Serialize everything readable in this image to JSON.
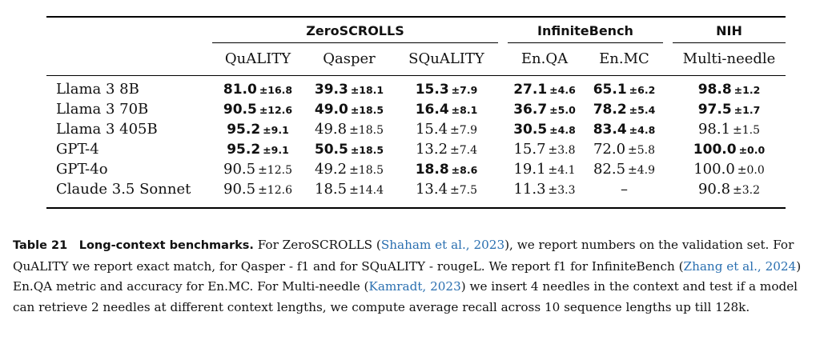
{
  "table": {
    "groups": [
      "ZeroSCROLLS",
      "InfiniteBench",
      "NIH"
    ],
    "columns": [
      "QuALITY",
      "Qasper",
      "SQuALITY",
      "En.QA",
      "En.MC",
      "Multi-needle"
    ],
    "rows": [
      {
        "model": "Llama 3 8B",
        "cells": [
          {
            "v": "81.0",
            "sd": "±16.8",
            "bold": true
          },
          {
            "v": "39.3",
            "sd": "±18.1",
            "bold": true
          },
          {
            "v": "15.3",
            "sd": "±7.9",
            "bold": true
          },
          {
            "v": "27.1",
            "sd": "±4.6",
            "bold": true
          },
          {
            "v": "65.1",
            "sd": "±6.2",
            "bold": true
          },
          {
            "v": "98.8",
            "sd": "±1.2",
            "bold": true
          }
        ]
      },
      {
        "model": "Llama 3 70B",
        "cells": [
          {
            "v": "90.5",
            "sd": "±12.6",
            "bold": true
          },
          {
            "v": "49.0",
            "sd": "±18.5",
            "bold": true
          },
          {
            "v": "16.4",
            "sd": "±8.1",
            "bold": true
          },
          {
            "v": "36.7",
            "sd": "±5.0",
            "bold": true
          },
          {
            "v": "78.2",
            "sd": "±5.4",
            "bold": true
          },
          {
            "v": "97.5",
            "sd": "±1.7",
            "bold": true
          }
        ]
      },
      {
        "model": "Llama 3 405B",
        "cells": [
          {
            "v": "95.2",
            "sd": "±9.1",
            "bold": true
          },
          {
            "v": "49.8",
            "sd": "±18.5",
            "bold": false
          },
          {
            "v": "15.4",
            "sd": "±7.9",
            "bold": false
          },
          {
            "v": "30.5",
            "sd": "±4.8",
            "bold": true
          },
          {
            "v": "83.4",
            "sd": "±4.8",
            "bold": true
          },
          {
            "v": "98.1",
            "sd": "±1.5",
            "bold": false
          }
        ]
      },
      {
        "model": "GPT-4",
        "cells": [
          {
            "v": "95.2",
            "sd": "±9.1",
            "bold": true
          },
          {
            "v": "50.5",
            "sd": "±18.5",
            "bold": true
          },
          {
            "v": "13.2",
            "sd": "±7.4",
            "bold": false
          },
          {
            "v": "15.7",
            "sd": "±3.8",
            "bold": false
          },
          {
            "v": "72.0",
            "sd": "±5.8",
            "bold": false
          },
          {
            "v": "100.0",
            "sd": "±0.0",
            "bold": true
          }
        ]
      },
      {
        "model": "GPT-4o",
        "cells": [
          {
            "v": "90.5",
            "sd": "±12.5",
            "bold": false
          },
          {
            "v": "49.2",
            "sd": "±18.5",
            "bold": false
          },
          {
            "v": "18.8",
            "sd": "±8.6",
            "bold": true
          },
          {
            "v": "19.1",
            "sd": "±4.1",
            "bold": false
          },
          {
            "v": "82.5",
            "sd": "±4.9",
            "bold": false
          },
          {
            "v": "100.0",
            "sd": "±0.0",
            "bold": false
          }
        ]
      },
      {
        "model": "Claude 3.5 Sonnet",
        "cells": [
          {
            "v": "90.5",
            "sd": "±12.6",
            "bold": false
          },
          {
            "v": "18.5",
            "sd": "±14.4",
            "bold": false
          },
          {
            "v": "13.4",
            "sd": "±7.5",
            "bold": false
          },
          {
            "v": "11.3",
            "sd": "±3.3",
            "bold": false
          },
          {
            "v": "–",
            "sd": "",
            "bold": false
          },
          {
            "v": "90.8",
            "sd": "±3.2",
            "bold": false
          }
        ]
      }
    ]
  },
  "caption": {
    "label": "Table 21",
    "title": "Long-context benchmarks.",
    "t1": " For ZeroSCROLLS (",
    "ref1": "Shaham et al., 2023",
    "t2": "), we report numbers on the validation set. For QuALITY we report exact match, for Qasper - f1 and for SQuALITY - rougeL. We report f1 for InfiniteBench (",
    "ref2": "Zhang et al., 2024",
    "t3": ") En.QA metric and accuracy for En.MC. For Multi-needle  (",
    "ref3": "Kamradt, 2023",
    "t4": ") we insert 4 needles in the context and test if a model can retrieve 2 needles at different context lengths, we compute average recall across 10 sequence lengths up till 128k."
  }
}
